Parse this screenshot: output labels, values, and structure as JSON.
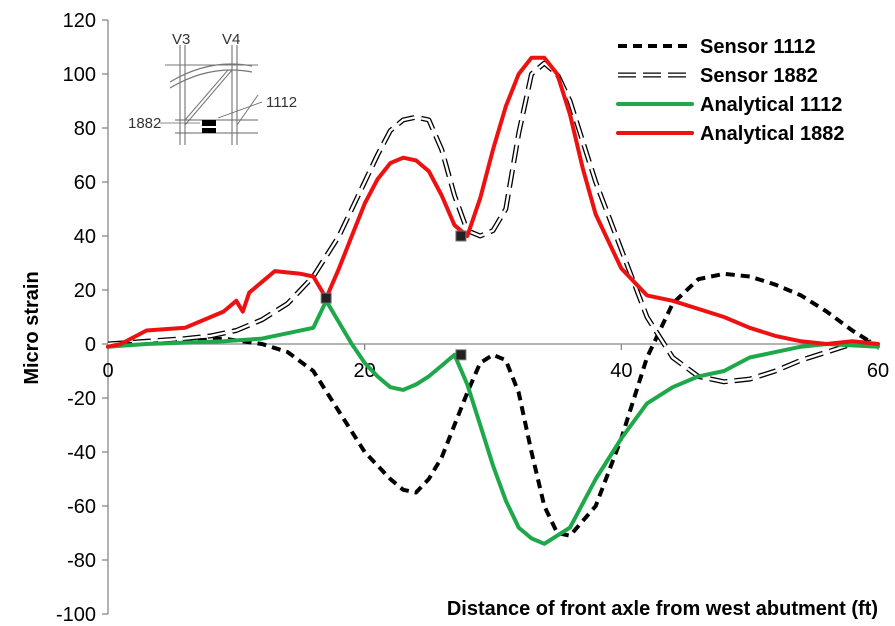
{
  "chart_data": {
    "type": "line",
    "xlabel": "Distance of front axle from west abutment (ft)",
    "ylabel": "Micro strain",
    "xlim": [
      0,
      60
    ],
    "ylim": [
      -100,
      120
    ],
    "xticks": [
      0,
      20,
      40,
      60
    ],
    "yticks": [
      -100,
      -80,
      -60,
      -40,
      -20,
      0,
      20,
      40,
      60,
      80,
      100,
      120
    ],
    "legend_position": "top-right",
    "series": [
      {
        "name": "Sensor 1112",
        "color": "#000000",
        "style": "dashed",
        "x": [
          0,
          3,
          6,
          9,
          12,
          14,
          16,
          18,
          20,
          22,
          23,
          24,
          25,
          26,
          27,
          28,
          29,
          30,
          31,
          32,
          33,
          34,
          35,
          36,
          38,
          40,
          42,
          44,
          46,
          48,
          50,
          52,
          54,
          56,
          58,
          60
        ],
        "y": [
          0,
          0,
          1,
          2,
          0,
          -3,
          -10,
          -25,
          -40,
          -50,
          -54,
          -55,
          -50,
          -42,
          -30,
          -18,
          -7,
          -4,
          -6,
          -18,
          -40,
          -60,
          -70,
          -71,
          -60,
          -35,
          -5,
          15,
          24,
          26,
          25,
          22,
          18,
          12,
          5,
          -1
        ]
      },
      {
        "name": "Sensor 1882",
        "color": "#000000",
        "style": "outlined",
        "x": [
          0,
          3,
          6,
          8,
          10,
          12,
          14,
          16,
          18,
          20,
          21,
          22,
          23,
          24,
          25,
          26,
          27,
          28,
          29,
          30,
          31,
          32,
          33,
          34,
          35,
          36,
          37,
          38,
          40,
          42,
          44,
          46,
          48,
          50,
          52,
          54,
          56,
          58,
          60
        ],
        "y": [
          0,
          1,
          2,
          3,
          5,
          9,
          15,
          25,
          40,
          60,
          70,
          79,
          83,
          84,
          83,
          72,
          55,
          42,
          40,
          42,
          50,
          78,
          100,
          104,
          100,
          90,
          75,
          60,
          35,
          10,
          -5,
          -12,
          -14,
          -13,
          -10,
          -6,
          -3,
          0,
          1
        ]
      },
      {
        "name": "Analytical 1112",
        "color": "#1ea84a",
        "style": "solid",
        "x": [
          0,
          3,
          6,
          9,
          12,
          14,
          16,
          17,
          18,
          19,
          20,
          21,
          22,
          23,
          24,
          25,
          26,
          27,
          28,
          29,
          30,
          31,
          32,
          33,
          34,
          36,
          38,
          40,
          42,
          44,
          46,
          48,
          50,
          52,
          54,
          56,
          58,
          60
        ],
        "y": [
          -1,
          0,
          0.5,
          1,
          2,
          4,
          6,
          16,
          8,
          0,
          -7,
          -12,
          -16,
          -17,
          -15,
          -12,
          -8,
          -4,
          -15,
          -30,
          -45,
          -58,
          -68,
          -72,
          -74,
          -68,
          -50,
          -35,
          -22,
          -16,
          -12,
          -10,
          -5,
          -3,
          -1,
          0,
          -0.5,
          -1
        ]
      },
      {
        "name": "Analytical 1882",
        "color": "#ee1111",
        "style": "solid",
        "x": [
          0,
          1,
          3,
          6,
          9,
          10,
          10.5,
          11,
          13,
          15,
          16,
          17,
          18,
          19,
          20,
          21,
          22,
          23,
          24,
          25,
          26,
          27,
          28,
          29,
          30,
          31,
          32,
          33,
          34,
          35,
          36,
          37,
          38,
          40,
          42,
          44,
          46,
          48,
          50,
          52,
          54,
          56,
          58,
          60
        ],
        "y": [
          -1,
          0,
          5,
          6,
          12,
          16,
          12,
          19,
          27,
          26,
          25,
          17,
          28,
          40,
          52,
          61,
          67,
          69,
          68,
          64,
          55,
          44,
          40,
          54,
          72,
          88,
          100,
          106,
          106,
          100,
          85,
          65,
          48,
          28,
          18,
          16,
          13,
          10,
          6,
          3,
          1,
          0,
          1,
          0
        ]
      }
    ],
    "markers": [
      {
        "x": 17,
        "y": 17
      },
      {
        "x": 27.5,
        "y": 40
      },
      {
        "x": 27.5,
        "y": -4
      }
    ],
    "inset": {
      "labels": [
        "V3",
        "V4",
        "1882",
        "1112"
      ]
    }
  }
}
